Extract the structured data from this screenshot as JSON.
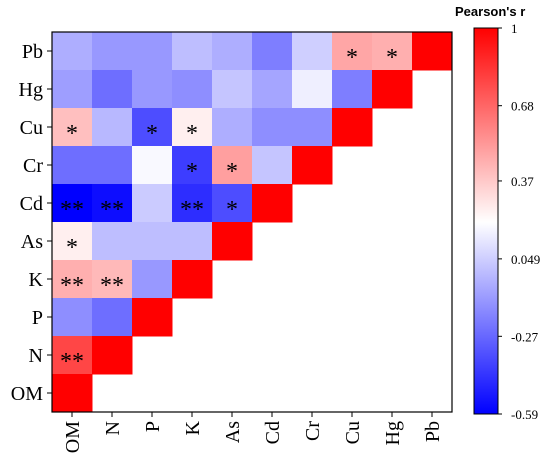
{
  "chart_data": {
    "type": "heatmap",
    "variables": [
      "OM",
      "N",
      "P",
      "K",
      "As",
      "Cd",
      "Cr",
      "Cu",
      "Hg",
      "Pb"
    ],
    "y_labels_top_to_bottom": [
      "Pb",
      "Hg",
      "Cu",
      "Cr",
      "Cd",
      "As",
      "K",
      "P",
      "N",
      "OM"
    ],
    "x_labels": [
      "OM",
      "N",
      "P",
      "K",
      "As",
      "Cd",
      "Cr",
      "Cu",
      "Hg",
      "Pb"
    ],
    "cells": [
      {
        "row": "Pb",
        "col": "OM",
        "r": -0.05,
        "sig": ""
      },
      {
        "row": "Pb",
        "col": "N",
        "r": -0.12,
        "sig": ""
      },
      {
        "row": "Pb",
        "col": "P",
        "r": -0.12,
        "sig": ""
      },
      {
        "row": "Pb",
        "col": "K",
        "r": 0.0,
        "sig": ""
      },
      {
        "row": "Pb",
        "col": "As",
        "r": -0.05,
        "sig": ""
      },
      {
        "row": "Pb",
        "col": "Cd",
        "r": -0.2,
        "sig": ""
      },
      {
        "row": "Pb",
        "col": "Cr",
        "r": 0.05,
        "sig": ""
      },
      {
        "row": "Pb",
        "col": "Cu",
        "r": 0.48,
        "sig": "*"
      },
      {
        "row": "Pb",
        "col": "Hg",
        "r": 0.45,
        "sig": "*"
      },
      {
        "row": "Pb",
        "col": "Pb",
        "r": 1.0,
        "sig": ""
      },
      {
        "row": "Hg",
        "col": "OM",
        "r": -0.1,
        "sig": ""
      },
      {
        "row": "Hg",
        "col": "N",
        "r": -0.25,
        "sig": ""
      },
      {
        "row": "Hg",
        "col": "P",
        "r": -0.12,
        "sig": ""
      },
      {
        "row": "Hg",
        "col": "K",
        "r": -0.15,
        "sig": ""
      },
      {
        "row": "Hg",
        "col": "As",
        "r": 0.02,
        "sig": ""
      },
      {
        "row": "Hg",
        "col": "Cd",
        "r": -0.08,
        "sig": ""
      },
      {
        "row": "Hg",
        "col": "Cr",
        "r": 0.15,
        "sig": ""
      },
      {
        "row": "Hg",
        "col": "Cu",
        "r": -0.2,
        "sig": ""
      },
      {
        "row": "Hg",
        "col": "Hg",
        "r": 1.0,
        "sig": ""
      },
      {
        "row": "Cu",
        "col": "OM",
        "r": 0.4,
        "sig": "*"
      },
      {
        "row": "Cu",
        "col": "N",
        "r": -0.02,
        "sig": ""
      },
      {
        "row": "Cu",
        "col": "P",
        "r": -0.35,
        "sig": "*"
      },
      {
        "row": "Cu",
        "col": "K",
        "r": 0.25,
        "sig": "*"
      },
      {
        "row": "Cu",
        "col": "As",
        "r": -0.05,
        "sig": ""
      },
      {
        "row": "Cu",
        "col": "Cd",
        "r": -0.15,
        "sig": ""
      },
      {
        "row": "Cu",
        "col": "Cr",
        "r": -0.15,
        "sig": ""
      },
      {
        "row": "Cu",
        "col": "Cu",
        "r": 1.0,
        "sig": ""
      },
      {
        "row": "Cr",
        "col": "OM",
        "r": -0.25,
        "sig": ""
      },
      {
        "row": "Cr",
        "col": "N",
        "r": -0.25,
        "sig": ""
      },
      {
        "row": "Cr",
        "col": "P",
        "r": 0.18,
        "sig": ""
      },
      {
        "row": "Cr",
        "col": "K",
        "r": -0.4,
        "sig": "*"
      },
      {
        "row": "Cr",
        "col": "As",
        "r": 0.5,
        "sig": "*"
      },
      {
        "row": "Cr",
        "col": "Cd",
        "r": 0.02,
        "sig": ""
      },
      {
        "row": "Cr",
        "col": "Cr",
        "r": 1.0,
        "sig": ""
      },
      {
        "row": "Cd",
        "col": "OM",
        "r": -0.59,
        "sig": "**"
      },
      {
        "row": "Cd",
        "col": "N",
        "r": -0.55,
        "sig": "**"
      },
      {
        "row": "Cd",
        "col": "P",
        "r": 0.04,
        "sig": ""
      },
      {
        "row": "Cd",
        "col": "K",
        "r": -0.45,
        "sig": "**"
      },
      {
        "row": "Cd",
        "col": "As",
        "r": -0.35,
        "sig": "*"
      },
      {
        "row": "Cd",
        "col": "Cd",
        "r": 1.0,
        "sig": ""
      },
      {
        "row": "As",
        "col": "OM",
        "r": 0.25,
        "sig": "*"
      },
      {
        "row": "As",
        "col": "N",
        "r": 0.0,
        "sig": ""
      },
      {
        "row": "As",
        "col": "P",
        "r": 0.0,
        "sig": ""
      },
      {
        "row": "As",
        "col": "K",
        "r": 0.0,
        "sig": ""
      },
      {
        "row": "As",
        "col": "As",
        "r": 1.0,
        "sig": ""
      },
      {
        "row": "K",
        "col": "OM",
        "r": 0.45,
        "sig": "**"
      },
      {
        "row": "K",
        "col": "N",
        "r": 0.42,
        "sig": "**"
      },
      {
        "row": "K",
        "col": "P",
        "r": -0.12,
        "sig": ""
      },
      {
        "row": "K",
        "col": "K",
        "r": 1.0,
        "sig": ""
      },
      {
        "row": "P",
        "col": "OM",
        "r": -0.15,
        "sig": ""
      },
      {
        "row": "P",
        "col": "N",
        "r": -0.25,
        "sig": ""
      },
      {
        "row": "P",
        "col": "P",
        "r": 1.0,
        "sig": ""
      },
      {
        "row": "N",
        "col": "OM",
        "r": 0.78,
        "sig": "**"
      },
      {
        "row": "N",
        "col": "N",
        "r": 1.0,
        "sig": ""
      },
      {
        "row": "OM",
        "col": "OM",
        "r": 1.0,
        "sig": ""
      }
    ],
    "colorbar": {
      "title": "Pearson's r",
      "min": -0.59,
      "max": 1,
      "ticks": [
        1,
        0.68,
        0.37,
        0.049,
        -0.27,
        -0.59
      ],
      "tick_labels": [
        "1",
        "0.68",
        "0.37",
        "0.049",
        "-0.27",
        "-0.59"
      ],
      "colors": {
        "low": "#0000ff",
        "mid": "#ffffff",
        "high": "#ff0000"
      },
      "mid_value": 0.2
    },
    "grid": false,
    "legend_position": "right"
  }
}
